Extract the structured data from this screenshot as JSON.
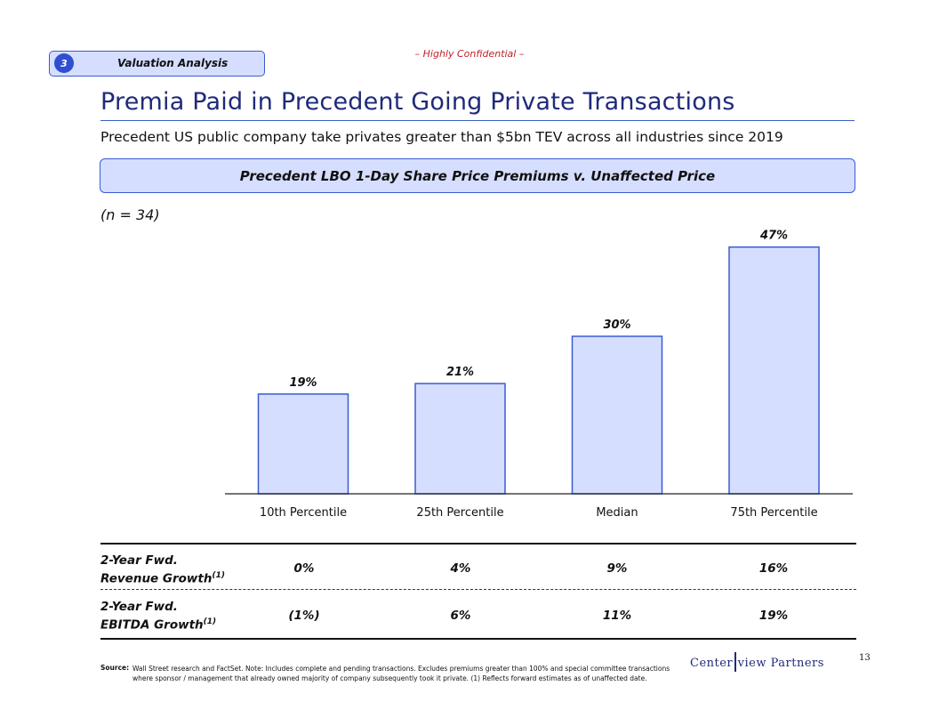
{
  "header": {
    "section_number": "3",
    "section_label": "Valuation Analysis",
    "confidential": "– Highly Confidential –"
  },
  "title": "Premia Paid in Precedent Going Private Transactions",
  "subtitle": "Precedent US public company take privates greater than $5bn TEV across all industries since 2019",
  "banner": "Precedent LBO 1-Day Share Price Premiums v. Unaffected Price",
  "n_label": "(n = 34)",
  "chart_data": {
    "type": "bar",
    "title": "Precedent LBO 1-Day Share Price Premiums v. Unaffected Price",
    "categories": [
      "10th Percentile",
      "25th Percentile",
      "Median",
      "75th Percentile"
    ],
    "values": [
      19,
      21,
      30,
      47
    ],
    "value_labels": [
      "19%",
      "21%",
      "30%",
      "47%"
    ],
    "ylim": [
      0,
      50
    ],
    "grid": false,
    "bar_color": "#d6deff",
    "bar_stroke": "#3a5bd0"
  },
  "table": {
    "rows": [
      {
        "label_line1": "2-Year Fwd.",
        "label_line2": "Revenue Growth",
        "footnote": "(1)",
        "values": [
          "0%",
          "4%",
          "9%",
          "16%"
        ]
      },
      {
        "label_line1": "2-Year Fwd.",
        "label_line2": "EBITDA Growth",
        "footnote": "(1)",
        "values": [
          "(1%)",
          "6%",
          "11%",
          "19%"
        ]
      }
    ]
  },
  "footer": {
    "source_label": "Source:",
    "source_line1": "Wall Street research and FactSet. Note: Includes complete and pending transactions. Excludes premiums greater than 100% and special committee transactions",
    "source_line2": "where sponsor / management that already owned majority of company subsequently took it private. (1) Reflects forward estimates as of unaffected date.",
    "logo_left": "Center",
    "logo_right": "view Partners",
    "page_number": "13"
  },
  "colors": {
    "accent": "#3a5bd0",
    "title": "#1f2a7a",
    "confidential": "#c0202a",
    "fill": "#d6deff"
  }
}
